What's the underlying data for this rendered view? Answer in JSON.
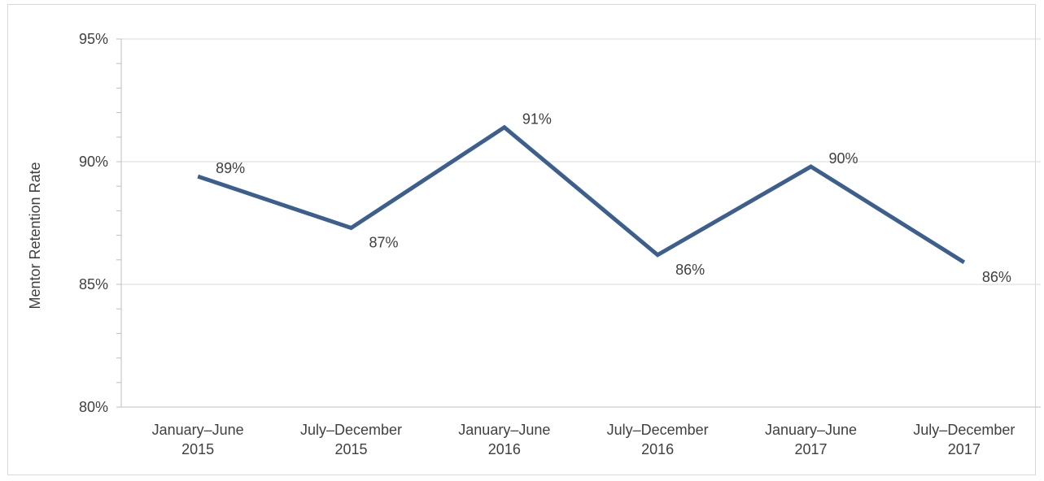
{
  "chart_data": {
    "type": "line",
    "title": "",
    "xlabel": "",
    "ylabel": "Mentor Retention Rate",
    "ylim": [
      80,
      95
    ],
    "yticks": [
      80,
      85,
      90,
      95
    ],
    "ytick_labels": [
      "80%",
      "85%",
      "90%",
      "95%"
    ],
    "grid": true,
    "categories": [
      [
        "January–June",
        "2015"
      ],
      [
        "July–December",
        "2015"
      ],
      [
        "January–June",
        "2016"
      ],
      [
        "July–December",
        "2016"
      ],
      [
        "January–June",
        "2017"
      ],
      [
        "July–December",
        "2017"
      ]
    ],
    "series": [
      {
        "values": [
          89.4,
          87.3,
          91.4,
          86.2,
          89.8,
          85.9
        ],
        "data_labels": [
          "89%",
          "87%",
          "91%",
          "86%",
          "90%",
          "86%"
        ],
        "color": "#3c5f8e"
      }
    ]
  }
}
